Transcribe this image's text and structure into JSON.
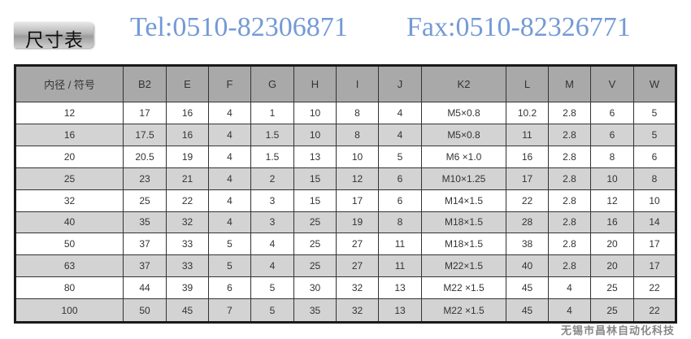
{
  "title": "尺寸表",
  "table": {
    "headers": [
      "内径 / 符号",
      "B2",
      "E",
      "F",
      "G",
      "H",
      "I",
      "J",
      "K2",
      "L",
      "M",
      "V",
      "W"
    ],
    "rows": [
      [
        "12",
        "17",
        "16",
        "4",
        "1",
        "10",
        "8",
        "4",
        "M5×0.8",
        "10.2",
        "2.8",
        "6",
        "5"
      ],
      [
        "16",
        "17.5",
        "16",
        "4",
        "1.5",
        "10",
        "8",
        "4",
        "M5×0.8",
        "11",
        "2.8",
        "6",
        "5"
      ],
      [
        "20",
        "20.5",
        "19",
        "4",
        "1.5",
        "13",
        "10",
        "5",
        "M6 ×1.0",
        "16",
        "2.8",
        "8",
        "6"
      ],
      [
        "25",
        "23",
        "21",
        "4",
        "2",
        "15",
        "12",
        "6",
        "M10×1.25",
        "17",
        "2.8",
        "10",
        "8"
      ],
      [
        "32",
        "25",
        "22",
        "4",
        "3",
        "15",
        "17",
        "6",
        "M14×1.5",
        "22",
        "2.8",
        "12",
        "10"
      ],
      [
        "40",
        "35",
        "32",
        "4",
        "3",
        "25",
        "19",
        "8",
        "M18×1.5",
        "28",
        "2.8",
        "16",
        "14"
      ],
      [
        "50",
        "37",
        "33",
        "5",
        "4",
        "25",
        "27",
        "11",
        "M18×1.5",
        "38",
        "2.8",
        "20",
        "17"
      ],
      [
        "63",
        "37",
        "33",
        "5",
        "4",
        "25",
        "27",
        "11",
        "M22×1.5",
        "40",
        "2.8",
        "20",
        "17"
      ],
      [
        "80",
        "44",
        "39",
        "6",
        "5",
        "30",
        "32",
        "13",
        "M22 ×1.5",
        "45",
        "4",
        "25",
        "22"
      ],
      [
        "100",
        "50",
        "45",
        "7",
        "5",
        "35",
        "32",
        "13",
        "M22 ×1.5",
        "45",
        "4",
        "25",
        "22"
      ]
    ]
  },
  "watermark": {
    "tel": "Tel:0510-82306871",
    "fax": "Fax:0510-82326771",
    "company": "无锡市昌林自动化科技",
    "color": "#4678c8"
  }
}
